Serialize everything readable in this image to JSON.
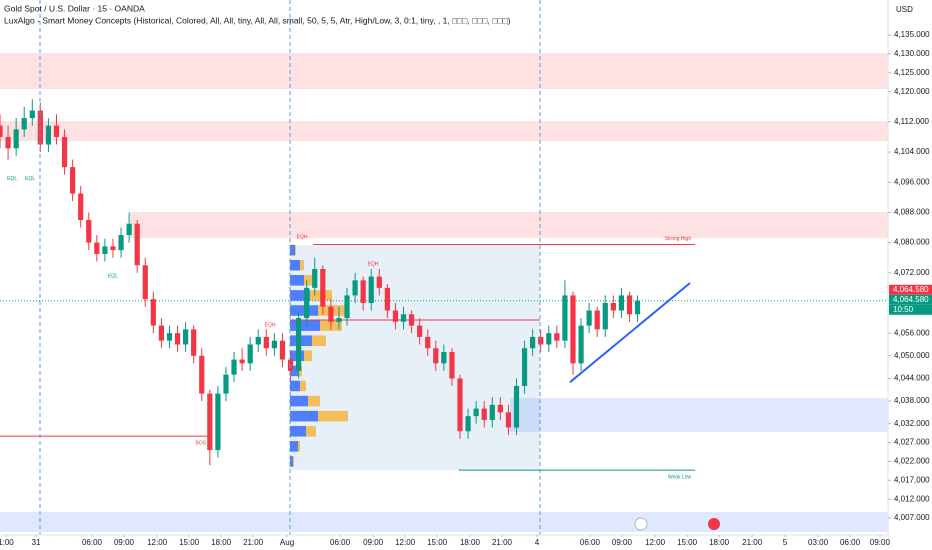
{
  "chart_data": {
    "type": "candlestick",
    "title": "Gold Spot / U.S. Dollar · 15 · OANDA",
    "subtitle": "LuxAlgo - Smart Money Concepts (Historical, Colored, All, All, tiny, All, All, small, 50, 5, 5, Atr, High/Low, 3, 0:1, tiny, , 1, □□□, □□□, □□□)",
    "currency": "USD",
    "up_color": "#089981",
    "down_color": "#f23645",
    "grid": false,
    "x": [
      0,
      3,
      6,
      9,
      12,
      15,
      18,
      21,
      24,
      27,
      30,
      33,
      36,
      39,
      42,
      45,
      48,
      51,
      54,
      57,
      60,
      63,
      66,
      69,
      72,
      75,
      78,
      81,
      84,
      87,
      90,
      93,
      96,
      99,
      102,
      105,
      108,
      111,
      114,
      117,
      120,
      123,
      126,
      129,
      132,
      135,
      138,
      141,
      144,
      147,
      150,
      153,
      156,
      159,
      162,
      165,
      168,
      171,
      174,
      177,
      180,
      183,
      186,
      189,
      192,
      195,
      198,
      201,
      204,
      207,
      210,
      213,
      216,
      219,
      222,
      225,
      228,
      231,
      234,
      237
    ],
    "open": [
      4111,
      4108,
      4105,
      4110,
      4113,
      4115,
      4106,
      4111,
      4108,
      4100,
      4093,
      4086,
      4080,
      4077,
      4079,
      4078,
      4082,
      4085,
      4074,
      4065,
      4058,
      4054,
      4056,
      4053,
      4057,
      4050,
      4040,
      4025,
      4040,
      4045,
      4049,
      4048,
      4053,
      4055,
      4052,
      4054,
      4049,
      4046,
      4060,
      4068,
      4073,
      4063,
      4059,
      4060,
      4066,
      4070,
      4064,
      4071,
      4068,
      4062,
      4059,
      4061,
      4058,
      4055,
      4052,
      4048,
      4051,
      4044,
      4030,
      4034,
      4036,
      4033,
      4037,
      4035,
      4031,
      4042,
      4052,
      4055,
      4053,
      4056,
      4054,
      4066,
      4048,
      4058,
      4062,
      4057,
      4064,
      4062,
      4066,
      4061
    ],
    "high": [
      4114,
      4111,
      4113,
      4116,
      4118,
      4117,
      4113,
      4114,
      4110,
      4102,
      4095,
      4088,
      4082,
      4081,
      4081,
      4084,
      4088,
      4086,
      4076,
      4067,
      4060,
      4058,
      4058,
      4059,
      4058,
      4052,
      4041,
      4042,
      4047,
      4051,
      4052,
      4055,
      4057,
      4057,
      4056,
      4056,
      4051,
      4062,
      4070,
      4076,
      4074,
      4065,
      4063,
      4068,
      4072,
      4071,
      4073,
      4073,
      4069,
      4064,
      4063,
      4062,
      4060,
      4057,
      4054,
      4053,
      4052,
      4045,
      4036,
      4038,
      4038,
      4039,
      4039,
      4037,
      4044,
      4054,
      4057,
      4057,
      4058,
      4058,
      4070,
      4067,
      4060,
      4064,
      4063,
      4066,
      4066,
      4068,
      4067,
      4066
    ],
    "low": [
      4105,
      4102,
      4103,
      4108,
      4111,
      4104,
      4104,
      4106,
      4098,
      4091,
      4084,
      4078,
      4075,
      4075,
      4076,
      4076,
      4080,
      4072,
      4063,
      4056,
      4052,
      4052,
      4051,
      4051,
      4048,
      4038,
      4021,
      4023,
      4038,
      4043,
      4046,
      4046,
      4051,
      4050,
      4050,
      4047,
      4043,
      4044,
      4058,
      4066,
      4061,
      4057,
      4057,
      4058,
      4064,
      4062,
      4062,
      4066,
      4060,
      4057,
      4057,
      4056,
      4053,
      4050,
      4046,
      4046,
      4042,
      4028,
      4028,
      4032,
      4031,
      4031,
      4033,
      4029,
      4029,
      4040,
      4050,
      4051,
      4051,
      4052,
      4052,
      4045,
      4046,
      4056,
      4055,
      4055,
      4060,
      4060,
      4059,
      4059
    ],
    "close": [
      4108,
      4105,
      4110,
      4113,
      4115,
      4106,
      4111,
      4108,
      4100,
      4093,
      4086,
      4080,
      4077,
      4079,
      4078,
      4082,
      4085,
      4074,
      4065,
      4058,
      4054,
      4056,
      4053,
      4057,
      4050,
      4040,
      4025,
      4040,
      4045,
      4049,
      4048,
      4053,
      4055,
      4052,
      4054,
      4049,
      4046,
      4060,
      4068,
      4073,
      4063,
      4059,
      4060,
      4066,
      4070,
      4064,
      4071,
      4068,
      4062,
      4059,
      4061,
      4058,
      4055,
      4052,
      4048,
      4051,
      4044,
      4030,
      4034,
      4036,
      4033,
      4037,
      4035,
      4031,
      4042,
      4052,
      4055,
      4053,
      4056,
      4054,
      4066,
      4048,
      4058,
      4062,
      4057,
      4064,
      4062,
      4066,
      4061,
      4064.58
    ],
    "xlim": [
      0,
      330.1
    ],
    "ylim": [
      4002.5,
      4144.3
    ],
    "xticks": [
      {
        "value": 2.2,
        "label": "1:00"
      },
      {
        "value": 13.4,
        "label": "31"
      },
      {
        "value": 34.2,
        "label": "06:00"
      },
      {
        "value": 46.1,
        "label": "09:00"
      },
      {
        "value": 58.4,
        "label": "12:00"
      },
      {
        "value": 70.3,
        "label": "15:00"
      },
      {
        "value": 82.2,
        "label": "18:00"
      },
      {
        "value": 94.1,
        "label": "21:00"
      },
      {
        "value": 106.7,
        "label": "Aug"
      },
      {
        "value": 126.4,
        "label": "06:00"
      },
      {
        "value": 138.7,
        "label": "09:00"
      },
      {
        "value": 150.6,
        "label": "12:00"
      },
      {
        "value": 162.5,
        "label": "15:00"
      },
      {
        "value": 174.7,
        "label": "18:00"
      },
      {
        "value": 186.6,
        "label": "21:00"
      },
      {
        "value": 199.6,
        "label": "4"
      },
      {
        "value": 219.3,
        "label": "06:00"
      },
      {
        "value": 231.2,
        "label": "09:00"
      },
      {
        "value": 243.5,
        "label": "12:00"
      },
      {
        "value": 255.4,
        "label": "15:00"
      },
      {
        "value": 267.3,
        "label": "18:00"
      },
      {
        "value": 279.6,
        "label": "21:00"
      },
      {
        "value": 291.8,
        "label": "5"
      },
      {
        "value": 304.1,
        "label": "03:00"
      },
      {
        "value": 316,
        "label": "06:00"
      },
      {
        "value": 327.1,
        "label": "09:00"
      }
    ],
    "yticks": [
      {
        "value": 4135,
        "label": "4,135.000"
      },
      {
        "value": 4130,
        "label": "4,130.000"
      },
      {
        "value": 4125,
        "label": "4,125.000"
      },
      {
        "value": 4120,
        "label": "4,120.000"
      },
      {
        "value": 4112,
        "label": "4,112.000"
      },
      {
        "value": 4104,
        "label": "4,104.000"
      },
      {
        "value": 4096,
        "label": "4,096.000"
      },
      {
        "value": 4088,
        "label": "4,088.000"
      },
      {
        "value": 4080,
        "label": "4,080.000"
      },
      {
        "value": 4072,
        "label": "4,072.000"
      },
      {
        "value": 4056,
        "label": "4,056.000"
      },
      {
        "value": 4050,
        "label": "4,050.000"
      },
      {
        "value": 4044,
        "label": "4,044.000"
      },
      {
        "value": 4038,
        "label": "4,038.000"
      },
      {
        "value": 4032,
        "label": "4,032.000"
      },
      {
        "value": 4027,
        "label": "4,027.000"
      },
      {
        "value": 4022,
        "label": "4,022.000"
      },
      {
        "value": 4017,
        "label": "4,017.000"
      },
      {
        "value": 4012,
        "label": "4,012.000"
      },
      {
        "value": 4007,
        "label": "4,007.000"
      }
    ],
    "zones": [
      {
        "low": 4120.7,
        "high": 4130.2,
        "x": [
          0,
          330.1
        ],
        "color": "#f23645"
      },
      {
        "low": 4106.9,
        "high": 4112.2,
        "x": [
          0,
          330.1
        ],
        "color": "#f23645"
      },
      {
        "low": 4081.2,
        "high": 4088.1,
        "x": [
          48.3,
          330.1
        ],
        "color": "#f23645"
      },
      {
        "low": 4029.8,
        "high": 4038.8,
        "x": [
          189.6,
          330.1
        ],
        "color": "#2962ff"
      },
      {
        "low": 4003.3,
        "high": 4008.6,
        "x": [
          0,
          330.1
        ],
        "color": "#2962ff"
      },
      {
        "low": 4019.7,
        "high": 4079.3,
        "x": [
          107.8,
          200.7
        ],
        "color": "#5b9bd5"
      }
    ],
    "lines": [
      {
        "label": "Strong High",
        "value": 4079.5,
        "x": [
          116.4,
          258.4
        ],
        "color": "#f23645"
      },
      {
        "label": "Weak Low",
        "value": 4019.7,
        "x": [
          170.6,
          258.4
        ],
        "color": "#089981"
      },
      {
        "label": "BOS",
        "value": 4028.7,
        "x": [
          0,
          78.1
        ],
        "color": "#f23645"
      },
      {
        "value": 4059.5,
        "x": [
          107.8,
          200.7
        ],
        "color": "#f23645"
      }
    ],
    "annotations": [
      {
        "text": "EQL",
        "x": 4.5,
        "y": 4097,
        "color": "#089981"
      },
      {
        "text": "EQL",
        "x": 11.2,
        "y": 4097,
        "color": "#089981"
      },
      {
        "text": "EQL",
        "x": 42,
        "y": 4071.1,
        "color": "#089981"
      },
      {
        "text": "EQH",
        "x": 100.4,
        "y": 4058.1,
        "color": "#f23645"
      },
      {
        "text": "EQH",
        "x": 112.3,
        "y": 4081.5,
        "color": "#f23645"
      },
      {
        "text": "EQH",
        "x": 138.7,
        "y": 4074.3,
        "color": "#f23645"
      }
    ],
    "trendline": {
      "x": [
        211.9,
        256.5
      ],
      "y": [
        4043,
        4069.3
      ],
      "color": "#2962ff"
    },
    "volume_profile": {
      "x_start": 107.8,
      "prices": [
        4078,
        4074,
        4070,
        4066,
        4062,
        4058,
        4054,
        4050,
        4046,
        4042,
        4038,
        4034,
        4030,
        4026,
        4022
      ],
      "series": [
        {
          "color": "#2962ff",
          "values": [
            5,
            10,
            14,
            20,
            28,
            30,
            22,
            14,
            8,
            10,
            18,
            28,
            16,
            8,
            3
          ]
        },
        {
          "color": "#f5b335",
          "values": [
            1,
            4,
            10,
            22,
            30,
            22,
            14,
            8,
            4,
            6,
            12,
            30,
            10,
            2,
            1
          ]
        }
      ]
    },
    "last_price": 4064.58,
    "price_tags": [
      {
        "label": "4,064.580",
        "color": "#f23645"
      },
      {
        "label": "4,064.580",
        "color": "#089981"
      }
    ],
    "countdown": "10:50"
  }
}
